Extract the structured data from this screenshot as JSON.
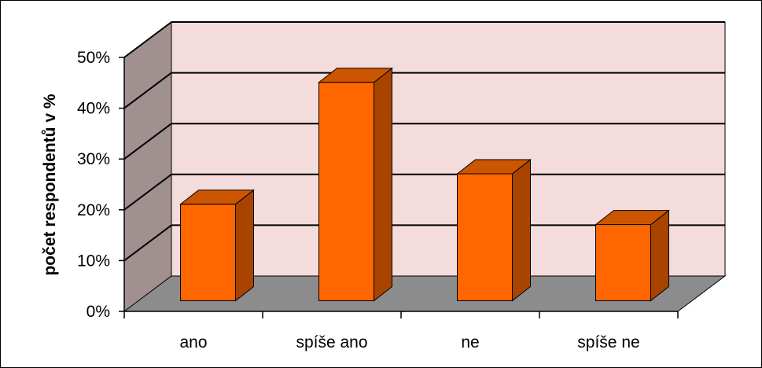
{
  "chart_data": {
    "type": "bar",
    "categories": [
      "ano",
      "spíše ano",
      "ne",
      "spíše ne"
    ],
    "values": [
      19,
      43,
      25,
      15
    ],
    "ylabel": "počet respondentů v %",
    "xlabel": "",
    "title": "",
    "ylim": [
      0,
      50
    ],
    "yticks": [
      "0%",
      "10%",
      "20%",
      "30%",
      "40%",
      "50%"
    ],
    "tick_values": [
      0,
      10,
      20,
      30,
      40,
      50
    ],
    "grid": true,
    "legend": "none",
    "style": "3d-column",
    "colors": {
      "bar_front": "#ff6600",
      "bar_top": "#cc5500",
      "bar_side": "#a84300",
      "back_wall": "#f5dcdc",
      "side_wall": "#a09090",
      "floor": "#8c8c8c",
      "outline": "#000000"
    }
  }
}
